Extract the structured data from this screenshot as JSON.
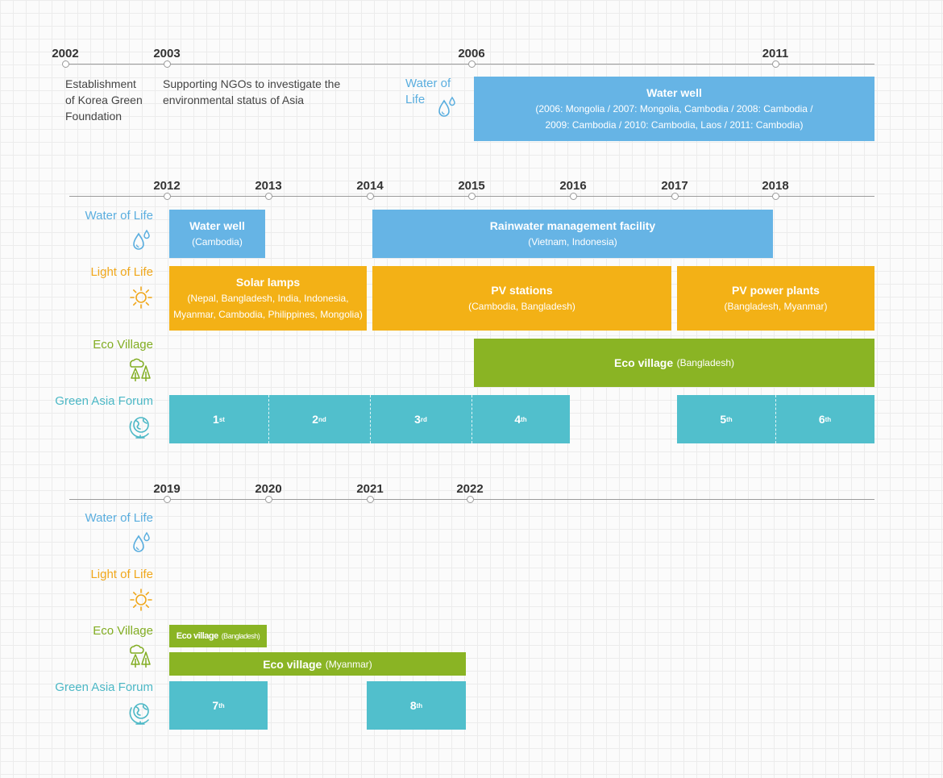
{
  "icons": {
    "water": "water-drops-icon",
    "light": "sun-icon",
    "eco": "trees-icon",
    "forum": "globe-icon"
  },
  "colors": {
    "water": "#66b4e5",
    "light": "#f3b116",
    "eco": "#8ab424",
    "forum": "#51bfcc",
    "axis": "#9a9a9a"
  },
  "section1": {
    "years": [
      "2002",
      "2003",
      "2006",
      "2011"
    ],
    "establishment": [
      "Establishment",
      "of Korea Green",
      "Foundation"
    ],
    "ngo": [
      "Supporting NGOs to investigate the",
      "environmental status of Asia"
    ],
    "water_label": [
      "Water of",
      "Life"
    ],
    "water_bar": {
      "title": "Water well",
      "sub1": "(2006: Mongolia / 2007: Mongolia, Cambodia / 2008: Cambodia /",
      "sub2": "2009: Cambodia / 2010: Cambodia, Laos / 2011: Cambodia)"
    }
  },
  "section2": {
    "years": [
      "2012",
      "2013",
      "2014",
      "2015",
      "2016",
      "2017",
      "2018"
    ],
    "categories": {
      "water": "Water of Life",
      "light": "Light of Life",
      "eco": "Eco Village",
      "forum": "Green Asia Forum"
    },
    "water_well": {
      "title": "Water well",
      "sub": "(Cambodia)"
    },
    "rainwater": {
      "title": "Rainwater management facility",
      "sub": "(Vietnam, Indonesia)"
    },
    "solar": {
      "title": "Solar lamps",
      "sub1": "(Nepal, Bangladesh, India, Indonesia,",
      "sub2": "Myanmar, Cambodia, Philippines, Mongolia)"
    },
    "pv_stations": {
      "title": "PV stations",
      "sub": "(Cambodia, Bangladesh)"
    },
    "pv_plants": {
      "title": "PV power plants",
      "sub": "(Bangladesh, Myanmar)"
    },
    "eco_village": {
      "title": "Eco village",
      "sub": "(Bangladesh)"
    },
    "forum": [
      {
        "n": "1",
        "suf": "st"
      },
      {
        "n": "2",
        "suf": "nd"
      },
      {
        "n": "3",
        "suf": "rd"
      },
      {
        "n": "4",
        "suf": "th"
      },
      {
        "n": "5",
        "suf": "th"
      },
      {
        "n": "6",
        "suf": "th"
      }
    ]
  },
  "section3": {
    "years": [
      "2019",
      "2020",
      "2021",
      "2022"
    ],
    "categories": {
      "water": "Water of Life",
      "light": "Light of Life",
      "eco": "Eco Village",
      "forum": "Green Asia Forum"
    },
    "eco_bangladesh": {
      "title": "Eco village",
      "sub": "(Bangladesh)"
    },
    "eco_myanmar": {
      "title": "Eco village",
      "sub": "(Myanmar)"
    },
    "forum": [
      {
        "n": "7",
        "suf": "th"
      },
      {
        "n": "8",
        "suf": "th"
      }
    ]
  }
}
